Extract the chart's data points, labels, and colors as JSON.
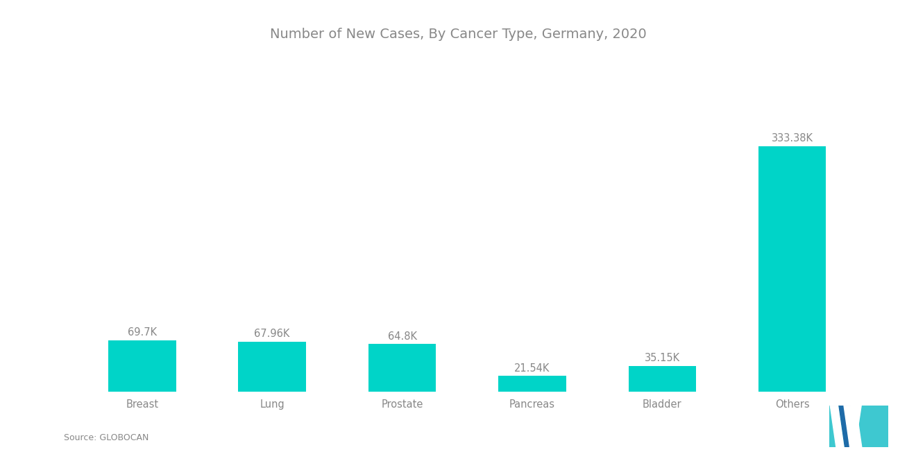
{
  "title": "Number of New Cases, By Cancer Type, Germany, 2020",
  "categories": [
    "Breast",
    "Lung",
    "Prostate",
    "Pancreas",
    "Bladder",
    "Others"
  ],
  "values": [
    69700,
    67960,
    64800,
    21540,
    35150,
    333380
  ],
  "labels": [
    "69.7K",
    "67.96K",
    "64.8K",
    "21.54K",
    "35.15K",
    "333.38K"
  ],
  "bar_color": "#00D4C8",
  "background_color": "#ffffff",
  "title_color": "#888888",
  "label_color": "#888888",
  "xlabel_color": "#888888",
  "source_text": "Source: GLOBOCAN",
  "title_fontsize": 14,
  "label_fontsize": 10.5,
  "xlabel_fontsize": 10.5,
  "source_fontsize": 9
}
